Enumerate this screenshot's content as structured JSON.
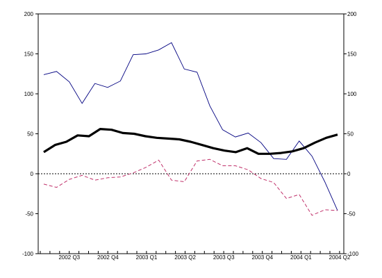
{
  "chart_data": {
    "type": "line",
    "title": "",
    "xlabel": "",
    "ylabel": "",
    "ylim": [
      -100,
      200
    ],
    "y_ticks": [
      -100,
      -50,
      0,
      50,
      100,
      150,
      200
    ],
    "y_tick_labels": [
      "-100",
      "-50",
      "0",
      "50",
      "100",
      "150",
      "200"
    ],
    "x_points": 31,
    "x_tick_labels": [
      {
        "label": "2002 Q3",
        "index": 3
      },
      {
        "label": "2002 Q4",
        "index": 7
      },
      {
        "label": "2003 Q1",
        "index": 11
      },
      {
        "label": "2003 Q2",
        "index": 15
      },
      {
        "label": "2003 Q3",
        "index": 19
      },
      {
        "label": "2003 Q4",
        "index": 23
      },
      {
        "label": "2004 Q1",
        "index": 27
      },
      {
        "label": "2004 Q2",
        "index": 31
      }
    ],
    "zero_line": {
      "value": 0,
      "style": "dotted"
    },
    "grid": false,
    "legend": "none",
    "series": [
      {
        "color": "#000080",
        "style": "solid-thin",
        "values": [
          124,
          128,
          115,
          88,
          113,
          108,
          116,
          149,
          150,
          155,
          164,
          131,
          127,
          85,
          55,
          46,
          51,
          39,
          19,
          18,
          41,
          22,
          -10,
          -46
        ]
      },
      {
        "color": "#000000",
        "style": "solid-thick",
        "values": [
          27,
          36,
          40,
          48,
          47,
          56,
          55,
          51,
          50,
          47,
          45,
          44,
          43,
          40,
          36,
          32,
          29,
          27,
          32,
          25,
          25,
          26,
          28,
          32,
          39,
          45,
          49
        ]
      },
      {
        "color": "#c0306a",
        "style": "dashed",
        "values": [
          -13,
          -17,
          -7,
          -2,
          -8,
          -5,
          -4,
          1,
          8,
          17,
          -8,
          -10,
          16,
          18,
          10,
          10,
          5,
          -6,
          -11,
          -31,
          -26,
          -52,
          -45,
          -46
        ]
      }
    ]
  }
}
